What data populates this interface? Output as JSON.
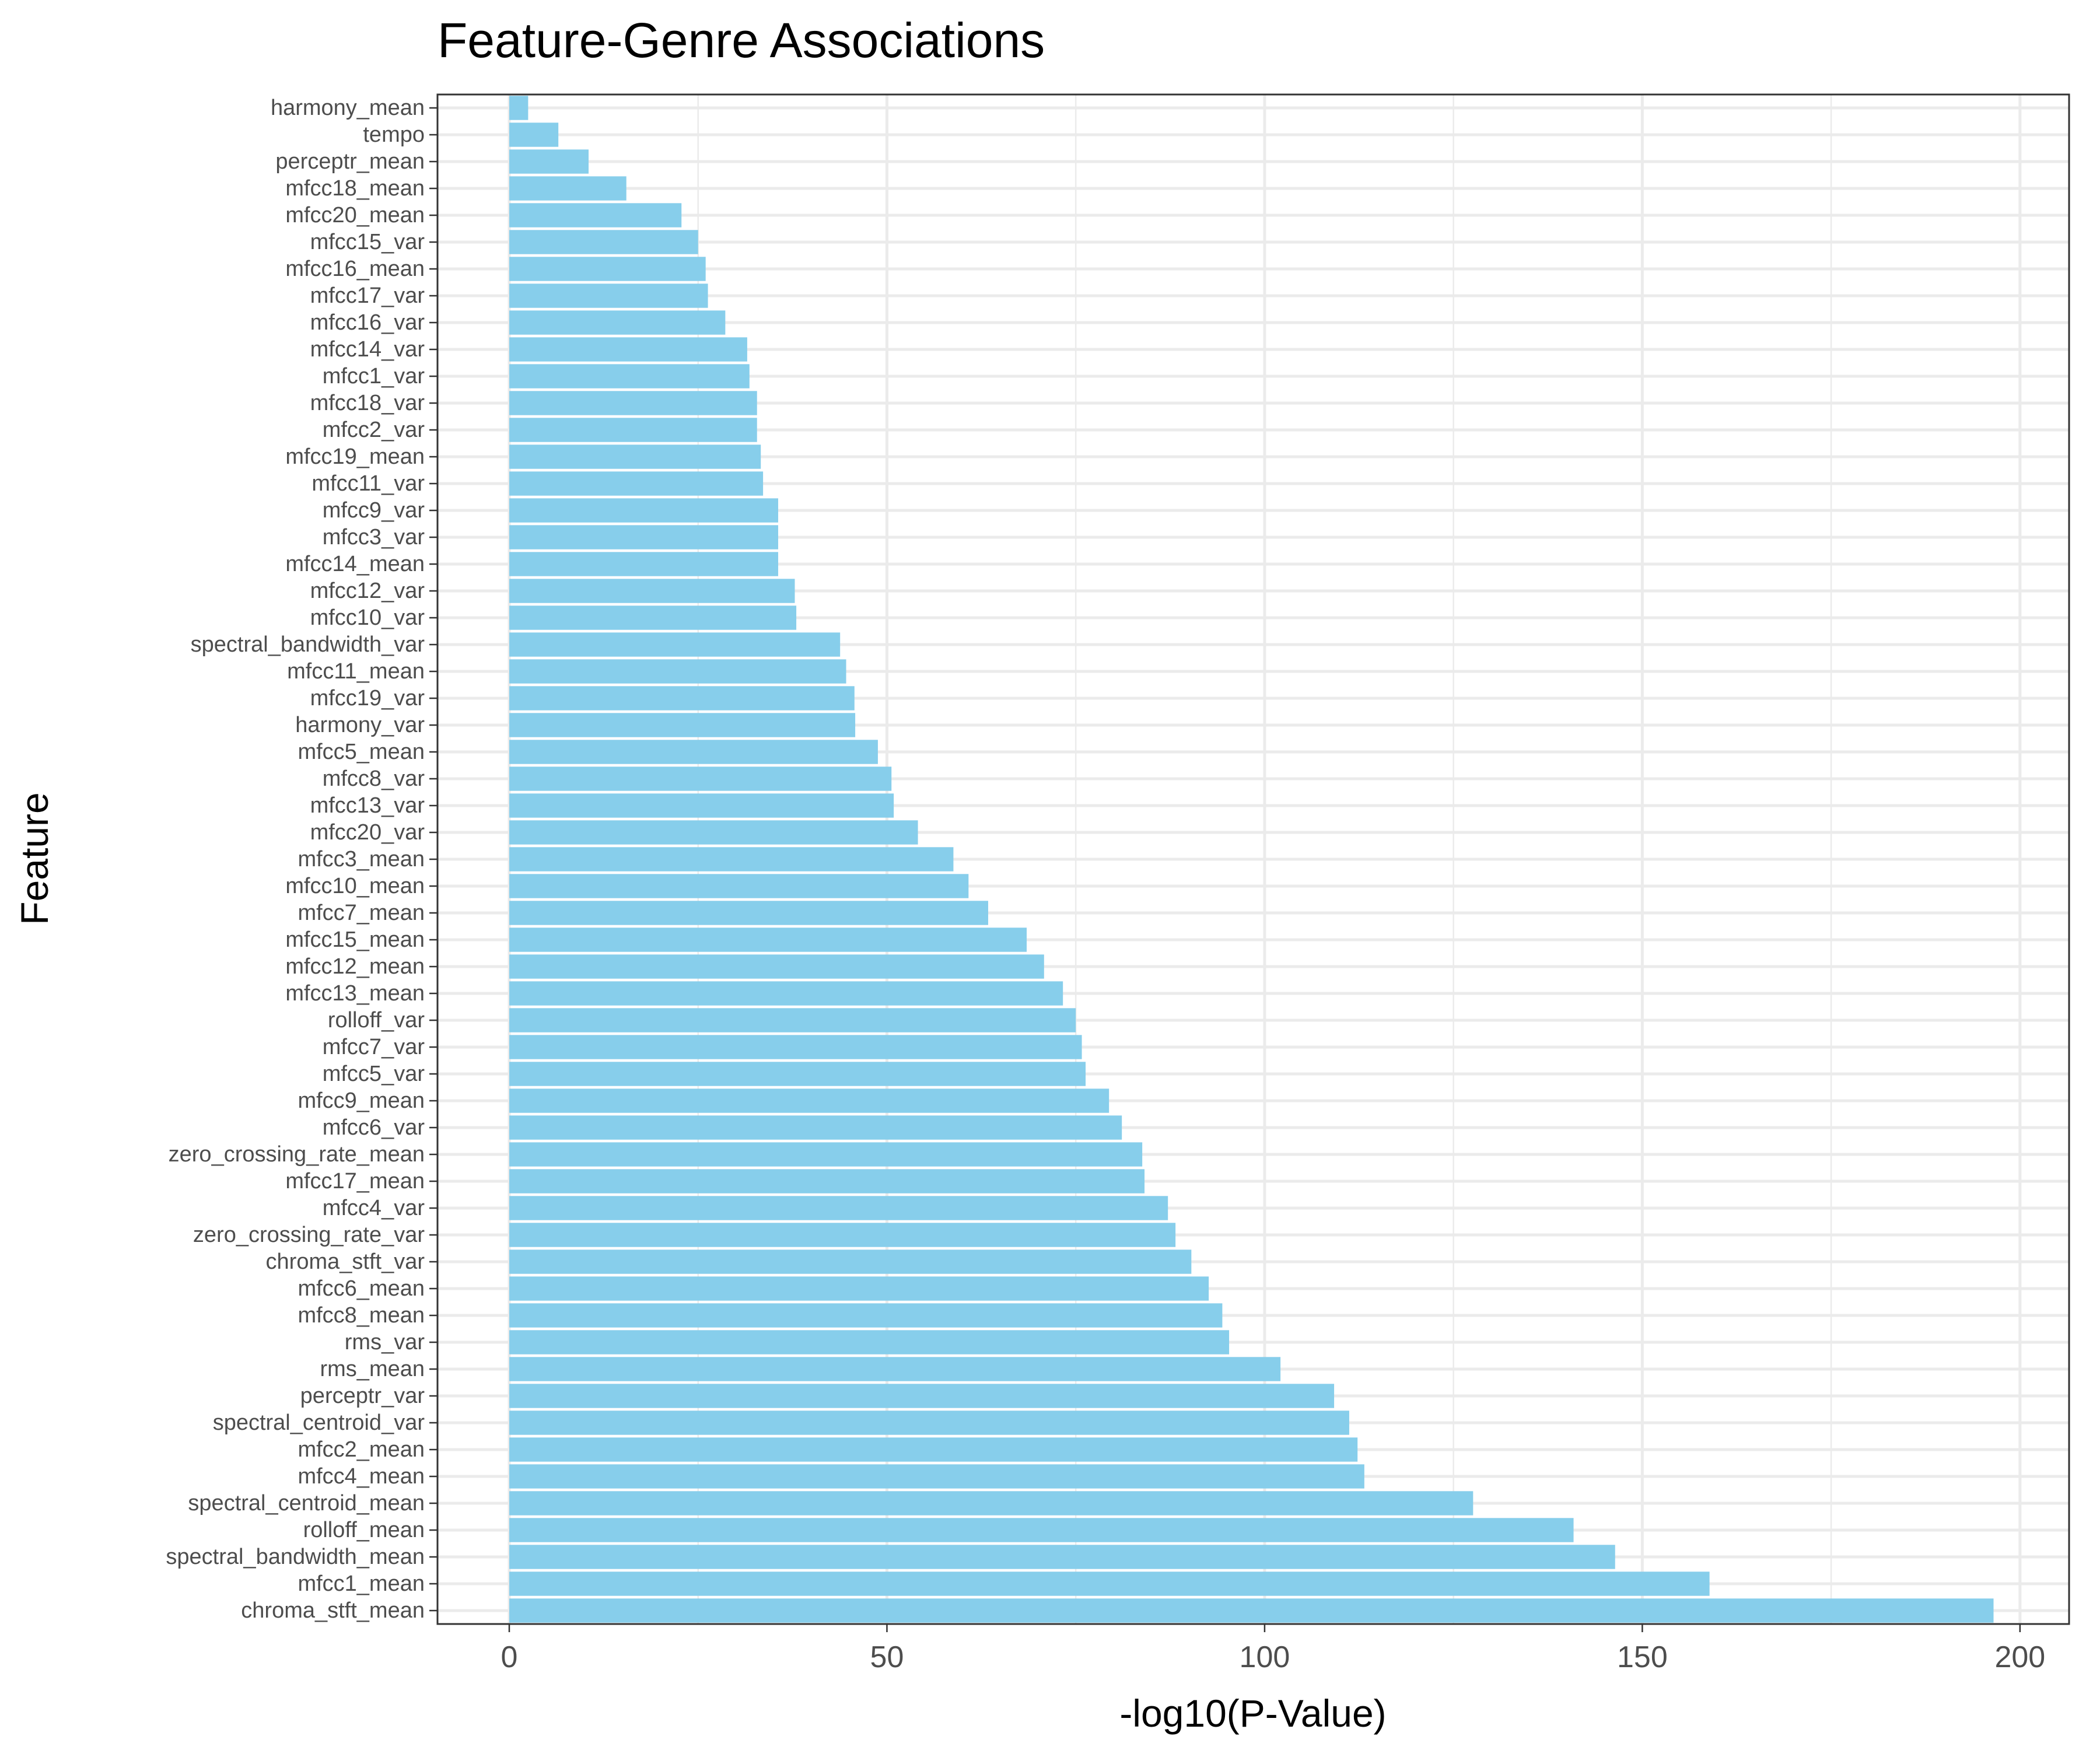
{
  "chart_data": {
    "type": "bar",
    "orientation": "horizontal",
    "title": "Feature-Genre Associations",
    "xlabel": "-log10(P-Value)",
    "ylabel": "Feature",
    "xlim": [
      -9.5,
      206.5
    ],
    "xticks": [
      "0",
      "50",
      "100",
      "150",
      "200"
    ],
    "xtick_values": [
      0,
      50,
      100,
      150,
      200
    ],
    "grid": true,
    "bar_color": "#87ceeb",
    "categories": [
      "harmony_mean",
      "tempo",
      "perceptr_mean",
      "mfcc18_mean",
      "mfcc20_mean",
      "mfcc15_var",
      "mfcc16_mean",
      "mfcc17_var",
      "mfcc16_var",
      "mfcc14_var",
      "mfcc1_var",
      "mfcc18_var",
      "mfcc2_var",
      "mfcc19_mean",
      "mfcc11_var",
      "mfcc9_var",
      "mfcc3_var",
      "mfcc14_mean",
      "mfcc12_var",
      "mfcc10_var",
      "spectral_bandwidth_var",
      "mfcc11_mean",
      "mfcc19_var",
      "harmony_var",
      "mfcc5_mean",
      "mfcc8_var",
      "mfcc13_var",
      "mfcc20_var",
      "mfcc3_mean",
      "mfcc10_mean",
      "mfcc7_mean",
      "mfcc15_mean",
      "mfcc12_mean",
      "mfcc13_mean",
      "rolloff_var",
      "mfcc7_var",
      "mfcc5_var",
      "mfcc9_mean",
      "mfcc6_var",
      "zero_crossing_rate_mean",
      "mfcc17_mean",
      "mfcc4_var",
      "zero_crossing_rate_var",
      "chroma_stft_var",
      "mfcc6_mean",
      "mfcc8_mean",
      "rms_var",
      "rms_mean",
      "perceptr_var",
      "spectral_centroid_var",
      "mfcc2_mean",
      "mfcc4_mean",
      "spectral_centroid_mean",
      "rolloff_mean",
      "spectral_bandwidth_mean",
      "mfcc1_mean",
      "chroma_stft_mean"
    ],
    "values": [
      2.5,
      6.5,
      10.5,
      15.5,
      22.8,
      25.0,
      26.0,
      26.3,
      28.6,
      31.5,
      31.8,
      32.8,
      32.8,
      33.3,
      33.6,
      35.6,
      35.6,
      35.6,
      37.8,
      38.0,
      43.8,
      44.6,
      45.7,
      45.8,
      48.8,
      50.6,
      50.9,
      54.1,
      58.8,
      60.8,
      63.4,
      68.5,
      70.8,
      73.3,
      75.0,
      75.8,
      76.3,
      79.4,
      81.1,
      83.8,
      84.1,
      87.2,
      88.2,
      90.3,
      92.6,
      94.4,
      95.3,
      102.1,
      109.2,
      111.2,
      112.3,
      113.2,
      127.6,
      140.9,
      146.4,
      158.9,
      196.5
    ]
  }
}
